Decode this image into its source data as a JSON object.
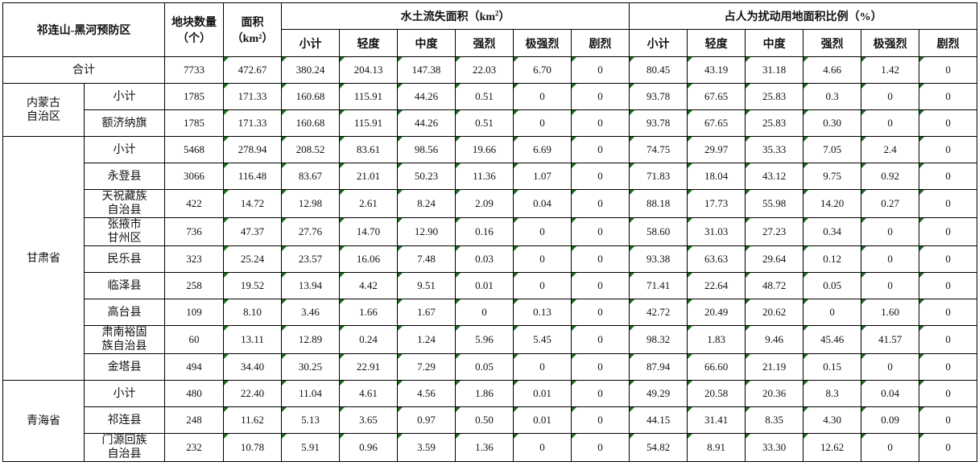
{
  "header": {
    "region_title": "祁连山-黑河预防区",
    "count_title": "地块数量",
    "count_unit": "（个）",
    "area_title": "面积",
    "area_unit": "（km²）",
    "erosion_group": "水土流失面积（km",
    "erosion_group_sup": "2",
    "erosion_group_end": "）",
    "ratio_group": "占人为扰动用地面积比例（%）",
    "sub_columns": [
      "小计",
      "轻度",
      "中度",
      "强烈",
      "极强烈",
      "剧烈"
    ]
  },
  "rows": [
    {
      "province": "合计",
      "name": "",
      "count": "7733",
      "values": [
        "472.67",
        "380.24",
        "204.13",
        "147.38",
        "22.03",
        "6.70",
        "0",
        "80.45",
        "43.19",
        "31.18",
        "4.66",
        "1.42",
        "0"
      ]
    },
    {
      "province": "内蒙古\n自治区",
      "name": "小计",
      "count": "1785",
      "values": [
        "171.33",
        "160.68",
        "115.91",
        "44.26",
        "0.51",
        "0",
        "0",
        "93.78",
        "67.65",
        "25.83",
        "0.3",
        "0",
        "0"
      ]
    },
    {
      "province": "",
      "name": "额济纳旗",
      "count": "1785",
      "values": [
        "171.33",
        "160.68",
        "115.91",
        "44.26",
        "0.51",
        "0",
        "0",
        "93.78",
        "67.65",
        "25.83",
        "0.30",
        "0",
        "0"
      ]
    },
    {
      "province": "甘肃省",
      "name": "小计",
      "count": "5468",
      "values": [
        "278.94",
        "208.52",
        "83.61",
        "98.56",
        "19.66",
        "6.69",
        "0",
        "74.75",
        "29.97",
        "35.33",
        "7.05",
        "2.4",
        "0"
      ]
    },
    {
      "province": "",
      "name": "永登县",
      "count": "3066",
      "values": [
        "116.48",
        "83.67",
        "21.01",
        "50.23",
        "11.36",
        "1.07",
        "0",
        "71.83",
        "18.04",
        "43.12",
        "9.75",
        "0.92",
        "0"
      ]
    },
    {
      "province": "",
      "name": "天祝藏族\n自治县",
      "count": "422",
      "values": [
        "14.72",
        "12.98",
        "2.61",
        "8.24",
        "2.09",
        "0.04",
        "0",
        "88.18",
        "17.73",
        "55.98",
        "14.20",
        "0.27",
        "0"
      ]
    },
    {
      "province": "",
      "name": "张掖市\n甘州区",
      "count": "736",
      "values": [
        "47.37",
        "27.76",
        "14.70",
        "12.90",
        "0.16",
        "0",
        "0",
        "58.60",
        "31.03",
        "27.23",
        "0.34",
        "0",
        "0"
      ]
    },
    {
      "province": "",
      "name": "民乐县",
      "count": "323",
      "values": [
        "25.24",
        "23.57",
        "16.06",
        "7.48",
        "0.03",
        "0",
        "0",
        "93.38",
        "63.63",
        "29.64",
        "0.12",
        "0",
        "0"
      ]
    },
    {
      "province": "",
      "name": "临泽县",
      "count": "258",
      "values": [
        "19.52",
        "13.94",
        "4.42",
        "9.51",
        "0.01",
        "0",
        "0",
        "71.41",
        "22.64",
        "48.72",
        "0.05",
        "0",
        "0"
      ]
    },
    {
      "province": "",
      "name": "高台县",
      "count": "109",
      "values": [
        "8.10",
        "3.46",
        "1.66",
        "1.67",
        "0",
        "0.13",
        "0",
        "42.72",
        "20.49",
        "20.62",
        "0",
        "1.60",
        "0"
      ]
    },
    {
      "province": "",
      "name": "肃南裕固\n族自治县",
      "count": "60",
      "values": [
        "13.11",
        "12.89",
        "0.24",
        "1.24",
        "5.96",
        "5.45",
        "0",
        "98.32",
        "1.83",
        "9.46",
        "45.46",
        "41.57",
        "0"
      ]
    },
    {
      "province": "",
      "name": "金塔县",
      "count": "494",
      "values": [
        "34.40",
        "30.25",
        "22.91",
        "7.29",
        "0.05",
        "0",
        "0",
        "87.94",
        "66.60",
        "21.19",
        "0.15",
        "0",
        "0"
      ]
    },
    {
      "province": "青海省",
      "name": "小计",
      "count": "480",
      "values": [
        "22.40",
        "11.04",
        "4.61",
        "4.56",
        "1.86",
        "0.01",
        "0",
        "49.29",
        "20.58",
        "20.36",
        "8.3",
        "0.04",
        "0"
      ]
    },
    {
      "province": "",
      "name": "祁连县",
      "count": "248",
      "values": [
        "11.62",
        "5.13",
        "3.65",
        "0.97",
        "0.50",
        "0.01",
        "0",
        "44.15",
        "31.41",
        "8.35",
        "4.30",
        "0.09",
        "0"
      ]
    },
    {
      "province": "",
      "name": "门源回族\n自治县",
      "count": "232",
      "values": [
        "10.78",
        "5.91",
        "0.96",
        "3.59",
        "1.36",
        "0",
        "0",
        "54.82",
        "8.91",
        "33.30",
        "12.62",
        "0",
        "0"
      ]
    }
  ],
  "colors": {
    "border": "#000000",
    "text_marker": "#1e6b1e"
  }
}
